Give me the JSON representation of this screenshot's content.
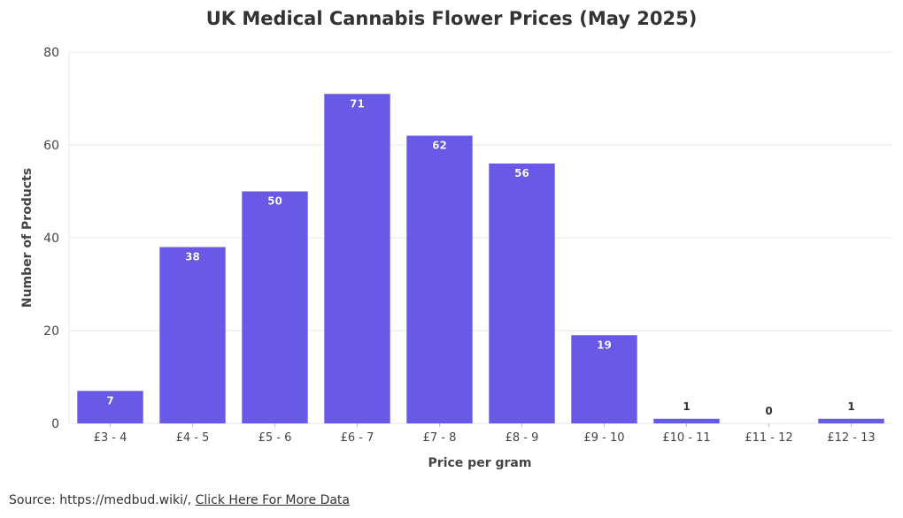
{
  "chart_data": {
    "type": "bar",
    "title": "UK Medical Cannabis Flower Prices (May 2025)",
    "xlabel": "Price per gram",
    "ylabel": "Number of Products",
    "categories": [
      "£3 - 4",
      "£4 - 5",
      "£5 - 6",
      "£6 - 7",
      "£7 - 8",
      "£8 - 9",
      "£9 - 10",
      "£10 - 11",
      "£11 - 12",
      "£12 - 13"
    ],
    "values": [
      7,
      38,
      50,
      71,
      62,
      56,
      19,
      1,
      0,
      1
    ],
    "ylim": [
      0,
      80
    ],
    "yticks": [
      0,
      20,
      40,
      60,
      80
    ],
    "grid": true,
    "bar_color": "#6050e6"
  },
  "footer": {
    "source_text": "Source: https://medbud.wiki/,",
    "link_text": "Click Here For More Data"
  }
}
